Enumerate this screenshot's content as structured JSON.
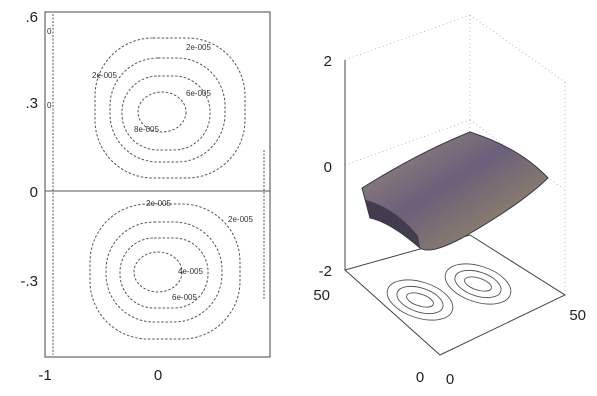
{
  "chart_data": [
    {
      "type": "contour",
      "title": "",
      "xlabel": "",
      "ylabel": "",
      "xlim": [
        -1,
        1
      ],
      "ylim": [
        -0.6,
        0.6
      ],
      "x_ticks": [
        "-1",
        "0"
      ],
      "y_ticks": [
        ".6",
        ".3",
        "0",
        "-.3"
      ],
      "x_tick_values": [
        -1,
        0
      ],
      "y_tick_values": [
        0.6,
        0.3,
        0,
        -0.3
      ],
      "upper_cell": {
        "center": [
          0,
          0.28
        ],
        "level_labels": [
          "2e-005",
          "2e-005",
          "6e-005",
          "8e-005"
        ],
        "levels": [
          2e-05,
          4e-05,
          6e-05,
          8e-05
        ]
      },
      "lower_cell": {
        "center": [
          0,
          -0.28
        ],
        "level_labels": [
          "2e-005",
          "2e-005",
          "4e-005",
          "2e-005",
          "6e-005"
        ],
        "levels": [
          2e-05,
          4e-05,
          6e-05,
          8e-05
        ]
      },
      "edge_labels": [
        "0",
        "0"
      ],
      "grid": false
    },
    {
      "type": "surface",
      "title": "",
      "z_ticks": [
        "2",
        "0",
        "-2"
      ],
      "z_tick_values": [
        2,
        0,
        -2
      ],
      "zlim": [
        -2,
        2
      ],
      "x_ticks": [
        "0",
        "50"
      ],
      "y_ticks": [
        "0",
        "50"
      ],
      "xlim": [
        0,
        50
      ],
      "ylim": [
        0,
        50
      ],
      "base_projection": "contour",
      "grid": true,
      "colors": [
        "#6b5f7a",
        "#8a7d6e",
        "#4f4a5e",
        "#9c8f7d"
      ]
    }
  ]
}
